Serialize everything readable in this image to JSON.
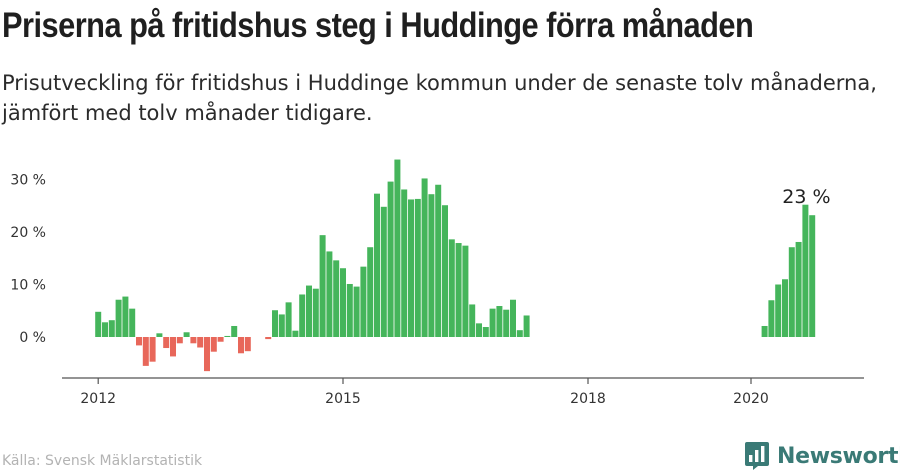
{
  "title": "Priserna på fritidshus steg i Huddinge förra månaden",
  "subtitle": "Prisutveckling för fritidshus i Huddinge kommun under de senaste tolv månaderna, jämfört med tolv månader tidigare.",
  "source": "Källa: Svensk Mäklarstatistik",
  "brand": {
    "name": "Newsworthy",
    "icon": "newsworthy-logo-icon",
    "color": "#3a7a76"
  },
  "chart_data": {
    "type": "bar",
    "title": "Priserna på fritidshus steg i Huddinge förra månaden",
    "xlabel": "",
    "ylabel": "",
    "y_ticks": [
      "0 %",
      "10 %",
      "20 %",
      "30 %"
    ],
    "y_tick_values": [
      0,
      10,
      20,
      30
    ],
    "ylim": [
      -7,
      34
    ],
    "x_ticks": [
      "2012",
      "2015",
      "2018",
      "2020"
    ],
    "x_tick_values": [
      2012,
      2015,
      2018,
      2020
    ],
    "xlim": [
      "2011-07",
      "2021-03"
    ],
    "colors": {
      "positive": "#45b55b",
      "negative": "#e8675a"
    },
    "annotation": {
      "text": "23 %",
      "period": "2020-09"
    },
    "grid": false,
    "values": [
      {
        "period": "2012-01",
        "value": 4.8
      },
      {
        "period": "2012-02",
        "value": 2.8
      },
      {
        "period": "2012-03",
        "value": 3.2
      },
      {
        "period": "2012-04",
        "value": 7.1
      },
      {
        "period": "2012-05",
        "value": 7.7
      },
      {
        "period": "2012-06",
        "value": 5.4
      },
      {
        "period": "2012-07",
        "value": -1.6
      },
      {
        "period": "2012-08",
        "value": -5.5
      },
      {
        "period": "2012-09",
        "value": -4.7
      },
      {
        "period": "2012-10",
        "value": 0.7
      },
      {
        "period": "2012-11",
        "value": -2.1
      },
      {
        "period": "2012-12",
        "value": -3.7
      },
      {
        "period": "2013-01",
        "value": -1.2
      },
      {
        "period": "2013-02",
        "value": 0.9
      },
      {
        "period": "2013-03",
        "value": -1.2
      },
      {
        "period": "2013-04",
        "value": -2.0
      },
      {
        "period": "2013-05",
        "value": -6.5
      },
      {
        "period": "2013-06",
        "value": -2.8
      },
      {
        "period": "2013-07",
        "value": -0.9
      },
      {
        "period": "2013-08",
        "value": 0.2
      },
      {
        "period": "2013-09",
        "value": 2.1
      },
      {
        "period": "2013-10",
        "value": -3.1
      },
      {
        "period": "2013-11",
        "value": -2.7
      },
      {
        "period": "2013-12",
        "value": 0.0
      },
      {
        "period": "2014-01",
        "value": 0.0
      },
      {
        "period": "2014-02",
        "value": -0.4
      },
      {
        "period": "2014-03",
        "value": 5.1
      },
      {
        "period": "2014-04",
        "value": 4.3
      },
      {
        "period": "2014-05",
        "value": 6.6
      },
      {
        "period": "2014-06",
        "value": 1.2
      },
      {
        "period": "2014-07",
        "value": 8.1
      },
      {
        "period": "2014-08",
        "value": 9.8
      },
      {
        "period": "2014-09",
        "value": 9.2
      },
      {
        "period": "2014-10",
        "value": 19.4
      },
      {
        "period": "2014-11",
        "value": 16.3
      },
      {
        "period": "2014-12",
        "value": 14.6
      },
      {
        "period": "2015-01",
        "value": 13.1
      },
      {
        "period": "2015-02",
        "value": 10.1
      },
      {
        "period": "2015-03",
        "value": 9.6
      },
      {
        "period": "2015-04",
        "value": 13.4
      },
      {
        "period": "2015-05",
        "value": 17.1
      },
      {
        "period": "2015-06",
        "value": 27.3
      },
      {
        "period": "2015-07",
        "value": 24.8
      },
      {
        "period": "2015-08",
        "value": 29.6
      },
      {
        "period": "2015-09",
        "value": 33.8
      },
      {
        "period": "2015-10",
        "value": 28.1
      },
      {
        "period": "2015-11",
        "value": 26.2
      },
      {
        "period": "2015-12",
        "value": 26.3
      },
      {
        "period": "2016-01",
        "value": 30.2
      },
      {
        "period": "2016-02",
        "value": 27.2
      },
      {
        "period": "2016-03",
        "value": 29.0
      },
      {
        "period": "2016-04",
        "value": 25.1
      },
      {
        "period": "2016-05",
        "value": 18.6
      },
      {
        "period": "2016-06",
        "value": 17.9
      },
      {
        "period": "2016-07",
        "value": 17.4
      },
      {
        "period": "2016-08",
        "value": 6.2
      },
      {
        "period": "2016-09",
        "value": 2.6
      },
      {
        "period": "2016-10",
        "value": 1.9
      },
      {
        "period": "2016-11",
        "value": 5.4
      },
      {
        "period": "2016-12",
        "value": 5.9
      },
      {
        "period": "2017-01",
        "value": 5.2
      },
      {
        "period": "2017-02",
        "value": 7.1
      },
      {
        "period": "2017-03",
        "value": 1.3
      },
      {
        "period": "2017-04",
        "value": 4.1
      },
      {
        "period": "2020-03",
        "value": 2.1
      },
      {
        "period": "2020-04",
        "value": 7.0
      },
      {
        "period": "2020-05",
        "value": 10.0
      },
      {
        "period": "2020-06",
        "value": 11.0
      },
      {
        "period": "2020-07",
        "value": 17.1
      },
      {
        "period": "2020-08",
        "value": 18.1
      },
      {
        "period": "2020-09",
        "value": 25.2
      },
      {
        "period": "2020-10",
        "value": 23.2
      }
    ]
  }
}
